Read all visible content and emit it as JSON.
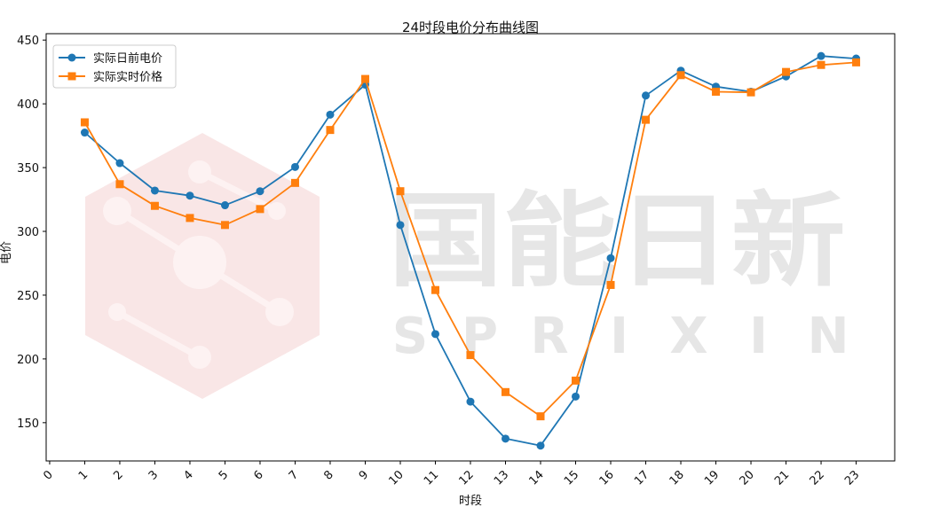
{
  "chart_data": {
    "type": "line",
    "title": "24时段电价分布曲线图",
    "xlabel": "时段",
    "ylabel": "电价",
    "x_ticks": [
      "0",
      "1",
      "2",
      "3",
      "4",
      "5",
      "6",
      "7",
      "8",
      "9",
      "10",
      "11",
      "12",
      "13",
      "14",
      "15",
      "16",
      "17",
      "18",
      "19",
      "20",
      "21",
      "22",
      "23"
    ],
    "xlim": [
      -0.1,
      24.1
    ],
    "ylim": [
      120,
      455
    ],
    "y_ticks": [
      150,
      200,
      250,
      300,
      350,
      400,
      450
    ],
    "grid": false,
    "legend_position": "top-left",
    "x": [
      1,
      2,
      3,
      4,
      5,
      6,
      7,
      8,
      9,
      10,
      11,
      12,
      13,
      14,
      15,
      16,
      17,
      18,
      19,
      20,
      21,
      22,
      23
    ],
    "series": [
      {
        "name": "实际日前电价",
        "color": "#1f77b4",
        "marker": "circle",
        "values": [
          377.5,
          353.5,
          332,
          328,
          320.5,
          331.5,
          350.5,
          391.5,
          415,
          305,
          219.5,
          166.5,
          137.5,
          132,
          170.5,
          279,
          406.5,
          426,
          413.5,
          409.5,
          421.5,
          437.5,
          435.5
        ]
      },
      {
        "name": "实际实时价格",
        "color": "#ff7f0e",
        "marker": "square",
        "values": [
          385.5,
          337,
          320,
          310.5,
          305,
          317.5,
          338,
          379.5,
          419.5,
          331.5,
          254,
          203,
          174,
          155,
          183,
          258,
          387.5,
          422.5,
          409.5,
          409,
          425,
          430.5,
          432.5
        ]
      }
    ]
  },
  "watermark": {
    "brand_cn": "国能日新",
    "brand_en": [
      "S",
      "P",
      "R",
      "I",
      "X",
      "I",
      "N"
    ]
  }
}
